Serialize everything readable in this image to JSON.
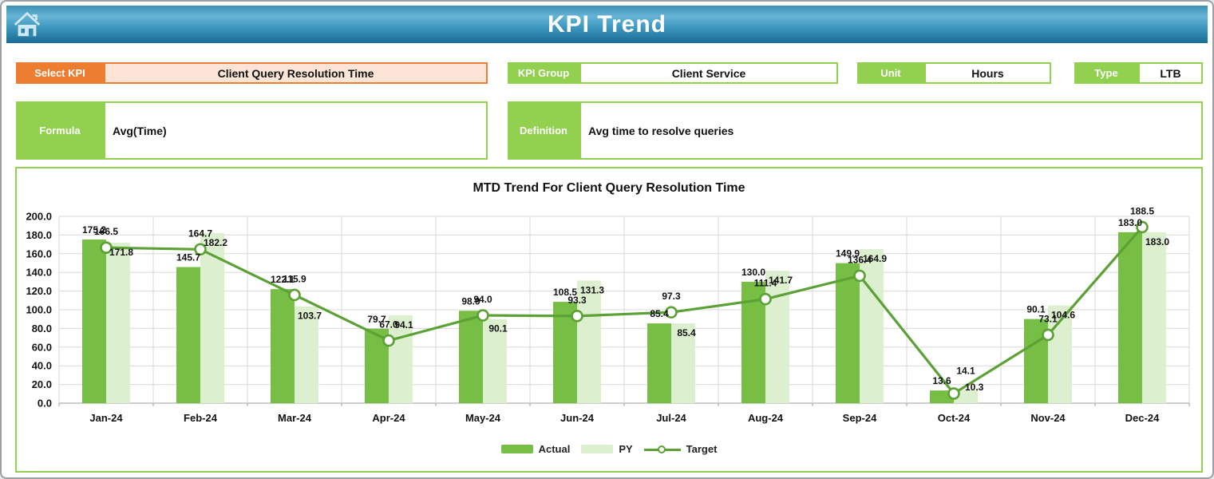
{
  "header": {
    "title": "KPI Trend"
  },
  "fields": {
    "select_kpi": {
      "label": "Select KPI",
      "value": "Client Query Resolution Time"
    },
    "kpi_group": {
      "label": "KPI Group",
      "value": "Client Service"
    },
    "unit": {
      "label": "Unit",
      "value": "Hours"
    },
    "type": {
      "label": "Type",
      "value": "LTB"
    },
    "formula": {
      "label": "Formula",
      "value": "Avg(Time)"
    },
    "definition": {
      "label": "Definition",
      "value": "Avg time to resolve queries"
    }
  },
  "colors": {
    "accent_orange": "#ed7d31",
    "accent_peach": "#fce4d6",
    "accent_green": "#92d050",
    "header_blue": "#2e86ae"
  },
  "chart_data": {
    "type": "bar",
    "title": "MTD Trend For Client Query Resolution Time",
    "categories": [
      "Jan-24",
      "Feb-24",
      "Mar-24",
      "Apr-24",
      "May-24",
      "Jun-24",
      "Jul-24",
      "Aug-24",
      "Sep-24",
      "Oct-24",
      "Nov-24",
      "Dec-24"
    ],
    "series": [
      {
        "name": "Actual",
        "type": "bar",
        "color": "#77be44",
        "values": [
          175.2,
          145.7,
          122.1,
          79.7,
          98.9,
          108.5,
          85.4,
          130.0,
          149.9,
          13.6,
          90.1,
          183.0
        ]
      },
      {
        "name": "PY",
        "type": "bar",
        "color": "#dcefce",
        "values": [
          171.8,
          182.2,
          103.7,
          94.1,
          90.1,
          131.3,
          85.4,
          141.7,
          164.9,
          14.1,
          104.6,
          183.0
        ]
      },
      {
        "name": "Target",
        "type": "line",
        "color": "#5ca135",
        "values": [
          166.5,
          164.7,
          115.9,
          67.0,
          94.0,
          93.3,
          97.3,
          111.4,
          136.4,
          10.3,
          73.1,
          188.5
        ]
      }
    ],
    "xlabel": "",
    "ylabel": "",
    "ylim": [
      0,
      200
    ],
    "ytick_step": 20,
    "grid": true,
    "legend_position": "bottom"
  }
}
